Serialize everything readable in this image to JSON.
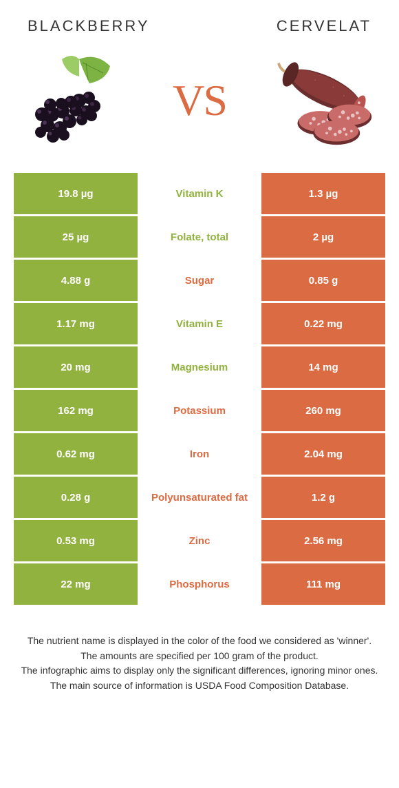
{
  "colors": {
    "left": "#91b23e",
    "right": "#db6b42",
    "bg": "#ffffff"
  },
  "food_left": {
    "name": "BLACKBERRY"
  },
  "food_right": {
    "name": "CERVELAT"
  },
  "vs_label": "VS",
  "rows": [
    {
      "left": "19.8 µg",
      "label": "Vitamin K",
      "right": "1.3 µg",
      "winner": "left"
    },
    {
      "left": "25 µg",
      "label": "Folate, total",
      "right": "2 µg",
      "winner": "left"
    },
    {
      "left": "4.88 g",
      "label": "Sugar",
      "right": "0.85 g",
      "winner": "right"
    },
    {
      "left": "1.17 mg",
      "label": "Vitamin E",
      "right": "0.22 mg",
      "winner": "left"
    },
    {
      "left": "20 mg",
      "label": "Magnesium",
      "right": "14 mg",
      "winner": "left"
    },
    {
      "left": "162 mg",
      "label": "Potassium",
      "right": "260 mg",
      "winner": "right"
    },
    {
      "left": "0.62 mg",
      "label": "Iron",
      "right": "2.04 mg",
      "winner": "right"
    },
    {
      "left": "0.28 g",
      "label": "Polyunsaturated fat",
      "right": "1.2 g",
      "winner": "right"
    },
    {
      "left": "0.53 mg",
      "label": "Zinc",
      "right": "2.56 mg",
      "winner": "right"
    },
    {
      "left": "22 mg",
      "label": "Phosphorus",
      "right": "111 mg",
      "winner": "right"
    }
  ],
  "footer": [
    "The nutrient name is displayed in the color of the food we considered as 'winner'.",
    "The amounts are specified per 100 gram of the product.",
    "The infographic aims to display only the significant differences, ignoring minor ones.",
    "The main source of information is USDA Food Composition Database."
  ]
}
